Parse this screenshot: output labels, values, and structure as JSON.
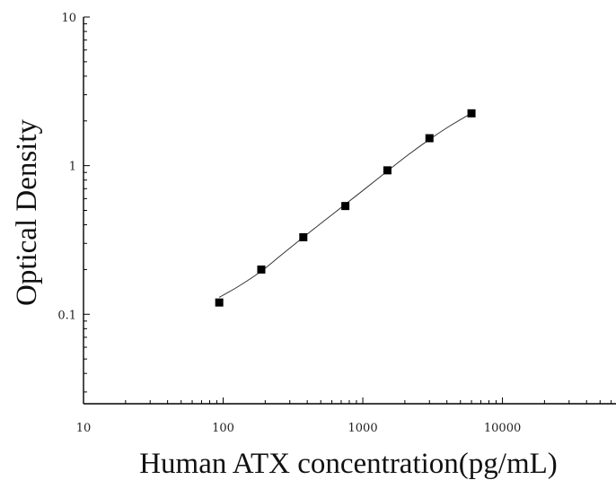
{
  "chart_data": {
    "type": "scatter",
    "xlabel": "Human ATX concentration(pg/mL)",
    "ylabel": "Optical Density",
    "xscale": "log",
    "yscale": "log",
    "xlim": [
      10,
      65000
    ],
    "ylim": [
      0.025,
      10
    ],
    "xticks": [
      "10",
      "100",
      "1000",
      "10000"
    ],
    "yticks": [
      "0.1",
      "1",
      "10"
    ],
    "grid": false,
    "series": [
      {
        "marker": "square",
        "color": "#000000",
        "x": [
          93.75,
          187.5,
          375,
          750,
          1500,
          3000,
          6000
        ],
        "y": [
          0.12,
          0.2,
          0.33,
          0.535,
          0.93,
          1.53,
          2.25
        ]
      }
    ],
    "fit_curve": {
      "x": [
        93.75,
        130,
        187.5,
        260,
        375,
        520,
        750,
        1040,
        1500,
        2080,
        3000,
        4200,
        6000
      ],
      "y": [
        0.13,
        0.155,
        0.195,
        0.25,
        0.33,
        0.42,
        0.55,
        0.7,
        0.92,
        1.17,
        1.5,
        1.85,
        2.25
      ],
      "color": "#333333"
    }
  }
}
